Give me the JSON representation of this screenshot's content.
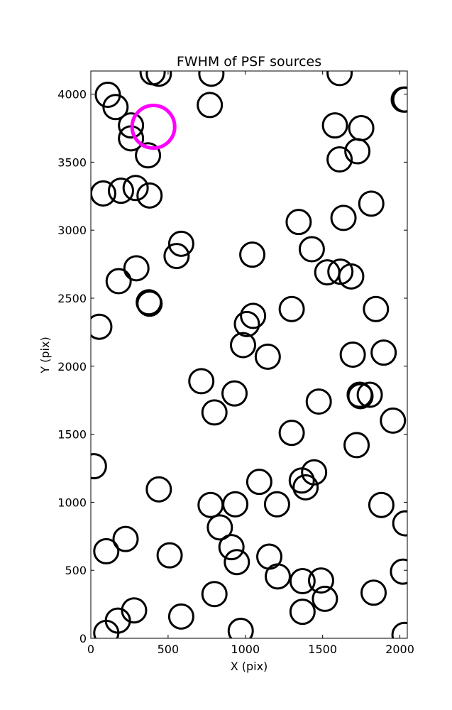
{
  "chart_data": {
    "type": "scatter",
    "title": "FWHM of PSF sources",
    "xlabel": "X (pix)",
    "ylabel": "Y (pix)",
    "xlim": [
      0,
      2048
    ],
    "ylim": [
      0,
      4170
    ],
    "xticks": [
      0,
      500,
      1000,
      1500,
      2000
    ],
    "yticks": [
      0,
      500,
      1000,
      1500,
      2000,
      2500,
      3000,
      3500,
      4000
    ],
    "grid": false,
    "marker": "open-circle",
    "colors": {
      "sources": "#000000",
      "highlight": "#ff00ff"
    },
    "sources": [
      {
        "x": 110,
        "y": 3995
      },
      {
        "x": 160,
        "y": 3905
      },
      {
        "x": 400,
        "y": 4160
      },
      {
        "x": 440,
        "y": 4150
      },
      {
        "x": 780,
        "y": 4150
      },
      {
        "x": 770,
        "y": 3920
      },
      {
        "x": 260,
        "y": 3770
      },
      {
        "x": 260,
        "y": 3675
      },
      {
        "x": 370,
        "y": 3550
      },
      {
        "x": 80,
        "y": 3270
      },
      {
        "x": 195,
        "y": 3290
      },
      {
        "x": 290,
        "y": 3310
      },
      {
        "x": 380,
        "y": 3255
      },
      {
        "x": 585,
        "y": 2900
      },
      {
        "x": 555,
        "y": 2810
      },
      {
        "x": 295,
        "y": 2720
      },
      {
        "x": 180,
        "y": 2625
      },
      {
        "x": 375,
        "y": 2470
      },
      {
        "x": 380,
        "y": 2460
      },
      {
        "x": 55,
        "y": 2290
      },
      {
        "x": 1610,
        "y": 4155
      },
      {
        "x": 1580,
        "y": 3770
      },
      {
        "x": 1750,
        "y": 3750
      },
      {
        "x": 1725,
        "y": 3580
      },
      {
        "x": 1610,
        "y": 3520
      },
      {
        "x": 1635,
        "y": 3090
      },
      {
        "x": 1345,
        "y": 3060
      },
      {
        "x": 1815,
        "y": 3195
      },
      {
        "x": 2025,
        "y": 3960
      },
      {
        "x": 2035,
        "y": 3960
      },
      {
        "x": 1045,
        "y": 2820
      },
      {
        "x": 1430,
        "y": 2860
      },
      {
        "x": 1530,
        "y": 2690
      },
      {
        "x": 1615,
        "y": 2695
      },
      {
        "x": 1685,
        "y": 2660
      },
      {
        "x": 1300,
        "y": 2420
      },
      {
        "x": 1845,
        "y": 2420
      },
      {
        "x": 1050,
        "y": 2370
      },
      {
        "x": 1010,
        "y": 2310
      },
      {
        "x": 985,
        "y": 2155
      },
      {
        "x": 1145,
        "y": 2070
      },
      {
        "x": 1695,
        "y": 2085
      },
      {
        "x": 1895,
        "y": 2100
      },
      {
        "x": 715,
        "y": 1890
      },
      {
        "x": 930,
        "y": 1800
      },
      {
        "x": 800,
        "y": 1660
      },
      {
        "x": 1475,
        "y": 1740
      },
      {
        "x": 1740,
        "y": 1790
      },
      {
        "x": 1745,
        "y": 1780
      },
      {
        "x": 1805,
        "y": 1790
      },
      {
        "x": 1955,
        "y": 1600
      },
      {
        "x": 1300,
        "y": 1510
      },
      {
        "x": 1720,
        "y": 1420
      },
      {
        "x": 20,
        "y": 1265
      },
      {
        "x": 440,
        "y": 1095
      },
      {
        "x": 1090,
        "y": 1150
      },
      {
        "x": 1365,
        "y": 1160
      },
      {
        "x": 1390,
        "y": 1110
      },
      {
        "x": 1445,
        "y": 1220
      },
      {
        "x": 775,
        "y": 980
      },
      {
        "x": 935,
        "y": 985
      },
      {
        "x": 1205,
        "y": 985
      },
      {
        "x": 1880,
        "y": 980
      },
      {
        "x": 2035,
        "y": 845
      },
      {
        "x": 835,
        "y": 815
      },
      {
        "x": 225,
        "y": 730
      },
      {
        "x": 100,
        "y": 640
      },
      {
        "x": 510,
        "y": 610
      },
      {
        "x": 910,
        "y": 670
      },
      {
        "x": 945,
        "y": 560
      },
      {
        "x": 1155,
        "y": 600
      },
      {
        "x": 1210,
        "y": 455
      },
      {
        "x": 1370,
        "y": 420
      },
      {
        "x": 1490,
        "y": 425
      },
      {
        "x": 1515,
        "y": 290
      },
      {
        "x": 1830,
        "y": 335
      },
      {
        "x": 2020,
        "y": 490
      },
      {
        "x": 800,
        "y": 325
      },
      {
        "x": 280,
        "y": 205
      },
      {
        "x": 175,
        "y": 130
      },
      {
        "x": 585,
        "y": 160
      },
      {
        "x": 1370,
        "y": 195
      },
      {
        "x": 100,
        "y": 40
      },
      {
        "x": 970,
        "y": 55
      },
      {
        "x": 2030,
        "y": 25
      }
    ],
    "highlight": {
      "x": 405,
      "y": 3760
    }
  }
}
